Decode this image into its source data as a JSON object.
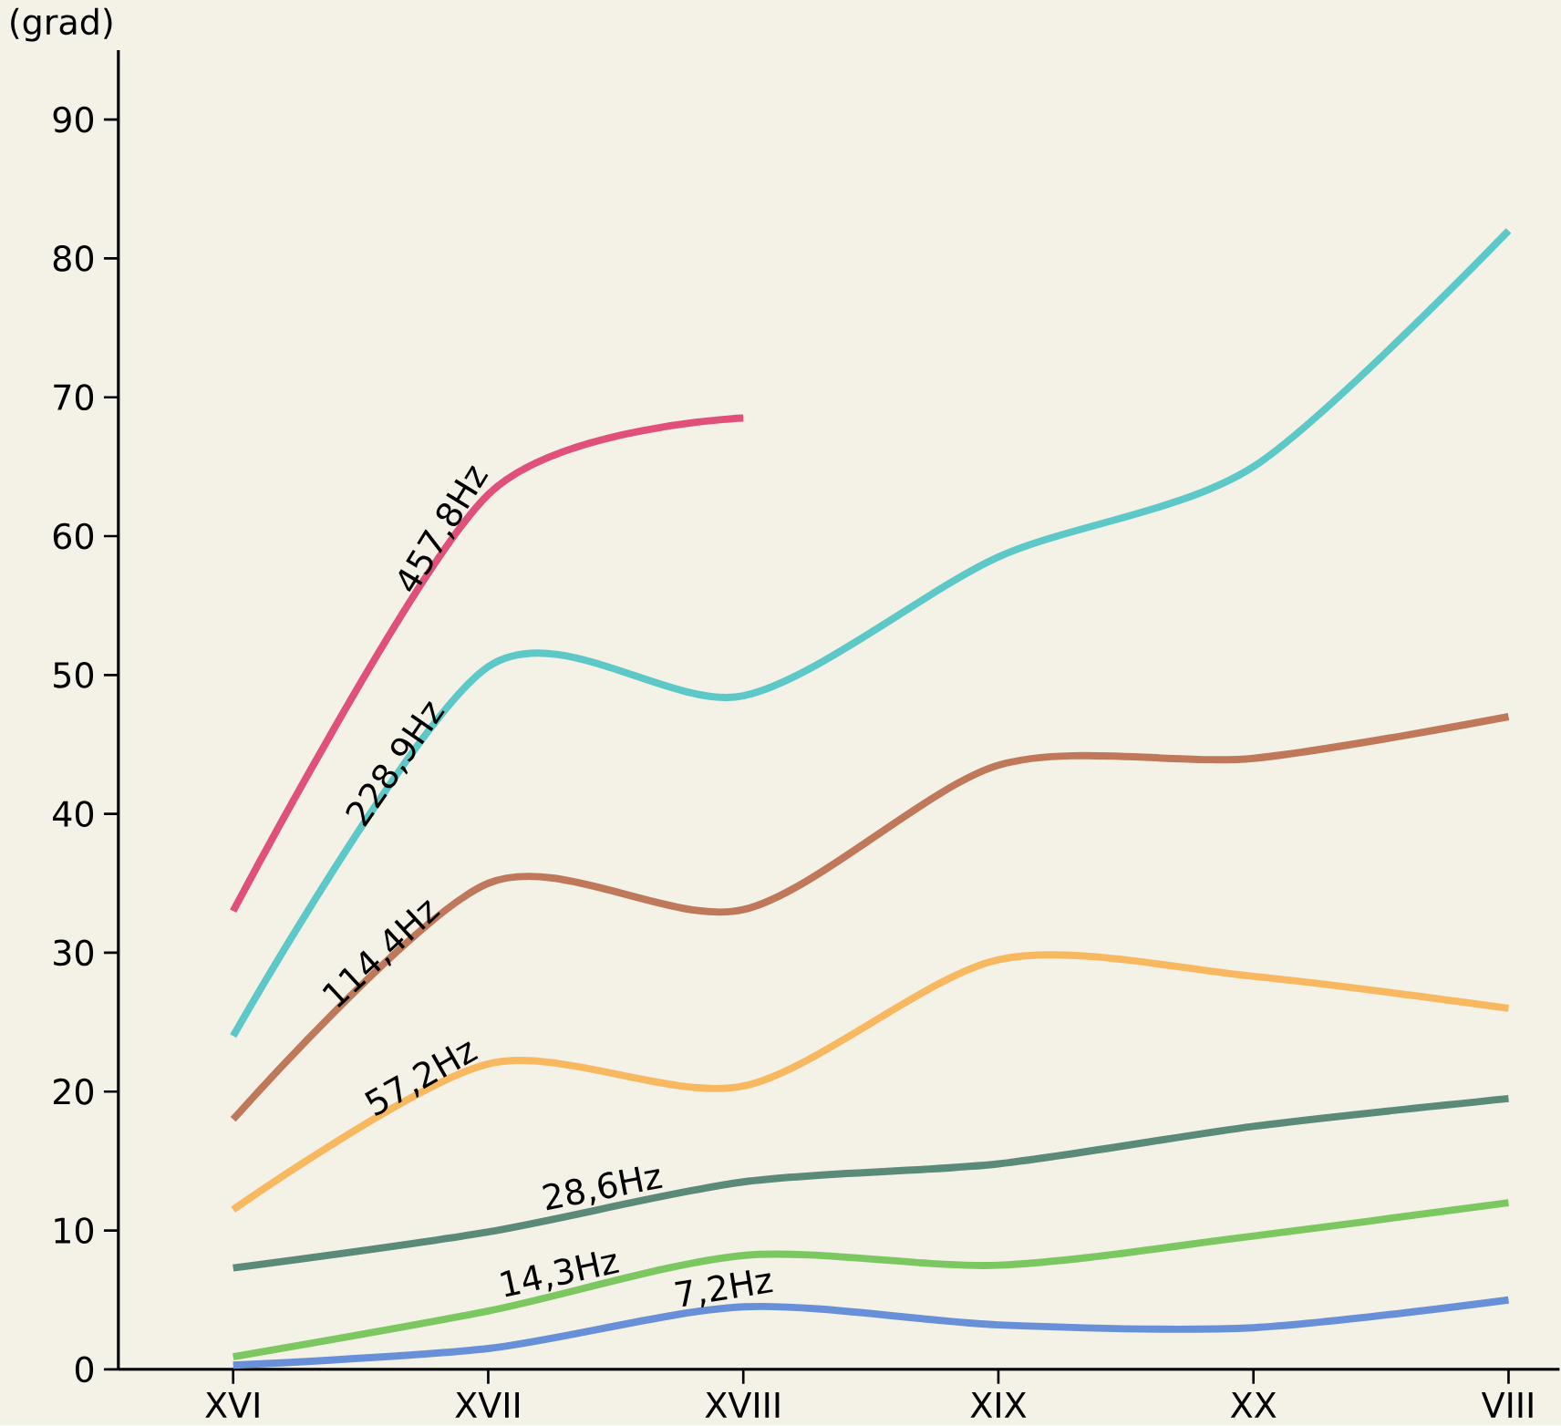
{
  "chart_data": {
    "type": "line",
    "ylabel": "(grad)",
    "categories": [
      "XVI",
      "XVII",
      "XVIII",
      "XIX",
      "XX",
      "VIII"
    ],
    "ylim": [
      0,
      95
    ],
    "yticks": [
      0,
      10,
      20,
      30,
      40,
      50,
      60,
      70,
      80,
      90
    ],
    "grid": false,
    "legend": false,
    "marker": "none",
    "line_style": "solid",
    "series": [
      {
        "name": "457,8Hz",
        "color": "#e0507a",
        "values": [
          33,
          63,
          68.5,
          null,
          null,
          null
        ]
      },
      {
        "name": "228,9Hz",
        "color": "#5cc8c8",
        "values": [
          24,
          50.6,
          48.5,
          58.5,
          65,
          82
        ]
      },
      {
        "name": "114,4Hz",
        "color": "#c0785a",
        "values": [
          18,
          35,
          33.1,
          43.5,
          44,
          47
        ]
      },
      {
        "name": "57,2Hz",
        "color": "#f8b860",
        "values": [
          11.5,
          22,
          20.4,
          29.5,
          28.3,
          26
        ]
      },
      {
        "name": "28,6Hz",
        "color": "#5a8a78",
        "values": [
          7.3,
          9.9,
          13.5,
          14.8,
          17.5,
          19.5
        ]
      },
      {
        "name": "14,3Hz",
        "color": "#7cc860",
        "values": [
          0.9,
          4.2,
          8.2,
          7.5,
          9.6,
          12
        ]
      },
      {
        "name": "7,2Hz",
        "color": "#6890d8",
        "values": [
          0.3,
          1.5,
          4.5,
          3.2,
          3,
          5
        ]
      }
    ]
  }
}
